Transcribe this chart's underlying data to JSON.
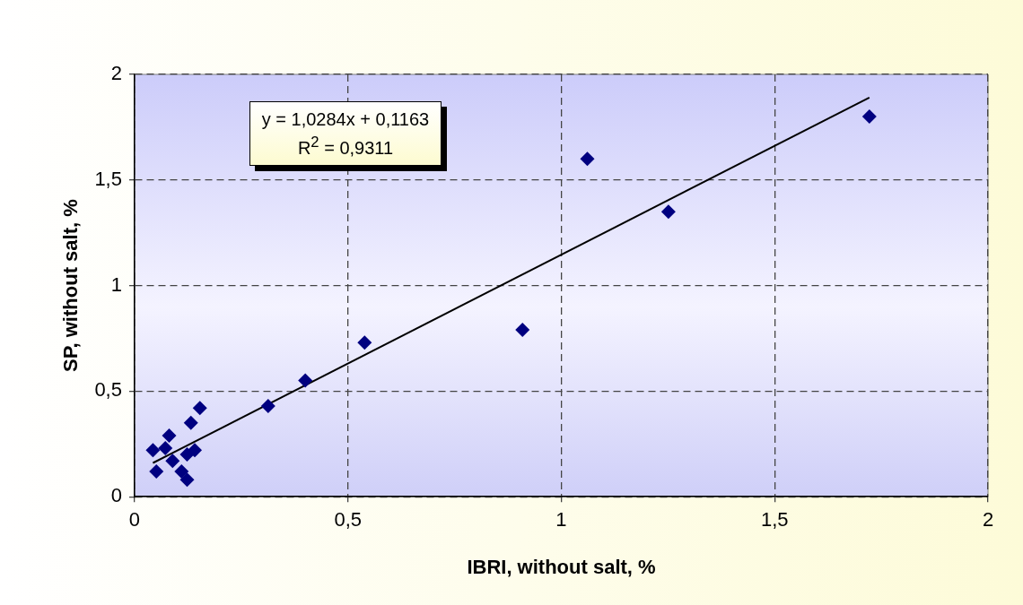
{
  "chart_data": {
    "type": "scatter",
    "xlabel": "IBRI, without salt, %",
    "ylabel": "SP, without salt, %",
    "annotations": [
      "y = 1,0284x + 0,1163",
      "R$^{2}$ = 0,9311"
    ],
    "series": [
      {
        "type": "scatter",
        "color": "#000080",
        "marker": "diamond",
        "x": [
          0.043,
          0.072,
          0.081,
          0.051,
          0.089,
          0.11,
          0.123,
          0.123,
          0.141,
          0.132,
          0.153,
          0.313,
          0.4,
          0.539,
          0.909,
          1.061,
          1.251,
          1.722
        ],
        "values": [
          0.22,
          0.23,
          0.29,
          0.12,
          0.17,
          0.12,
          0.08,
          0.2,
          0.22,
          0.35,
          0.42,
          0.43,
          0.55,
          0.73,
          0.79,
          1.6,
          1.35,
          1.8
        ]
      },
      {
        "type": "line",
        "color": "#000000",
        "marker": "none",
        "line_style": "solid",
        "x": [
          0.043,
          1.722
        ],
        "values": [
          0.16,
          1.89
        ]
      }
    ],
    "xlim": [
      0,
      2
    ],
    "xticks": [
      0,
      {
        "value": 0.5,
        "label": "0,5"
      },
      1,
      {
        "value": 1.5,
        "label": "1,5"
      },
      2
    ],
    "ylim": [
      0,
      2
    ],
    "yticks": [
      0,
      {
        "value": 0.5,
        "label": "0,5"
      },
      1,
      {
        "value": 1.5,
        "label": "1,5"
      },
      2
    ],
    "grid": true,
    "legend": false
  }
}
